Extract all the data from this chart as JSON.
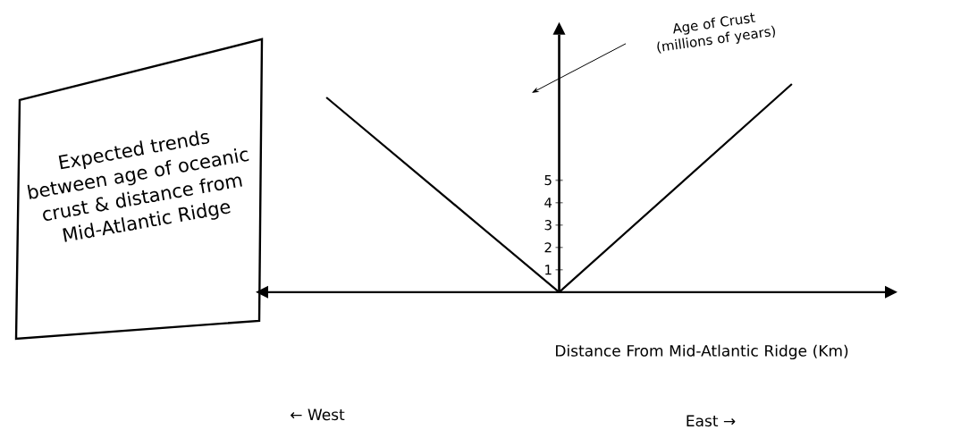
{
  "chart_data": {
    "type": "line",
    "title": "Expected trends between age of oceanic crust & distance from Mid-Atlantic Ridge",
    "xlabel": "Distance From Mid-Atlantic Ridge (Km)",
    "ylabel": "Age of Crust (millions of years)",
    "annotations": [
      "← West",
      "East →"
    ],
    "categories": [
      null,
      null,
      null
    ],
    "series": [
      {
        "color": "#000000",
        "values": [
          8.7,
          0,
          9.3
        ]
      }
    ],
    "ylim": [
      0,
      11.5
    ],
    "yticks": [
      1,
      2,
      3,
      4,
      5
    ],
    "tick_labels": "y",
    "marker": "none",
    "line_style": "solid"
  }
}
